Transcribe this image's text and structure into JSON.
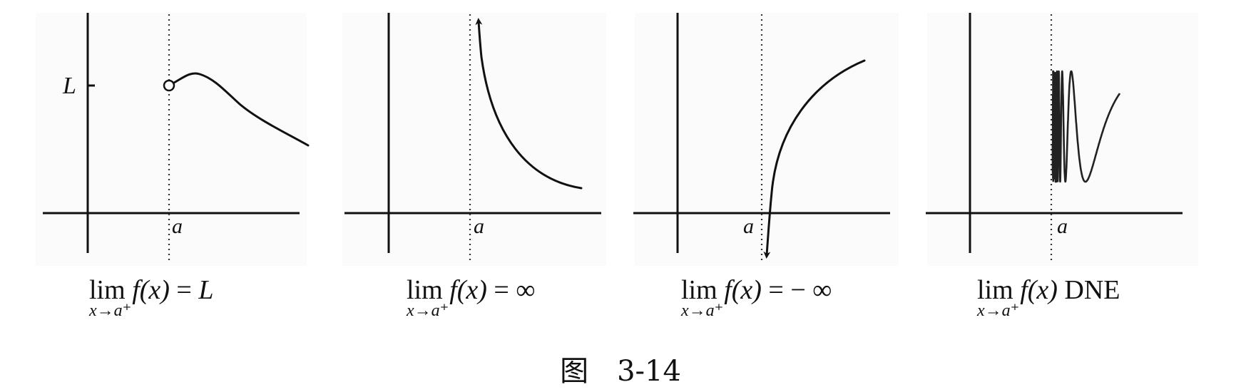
{
  "panels": [
    {
      "point_label": "a",
      "value_label": "L",
      "caption": {
        "lim": "lim",
        "sub": "x→a⁺",
        "expr": "f(x)",
        "eq": " = ",
        "rhs": "L"
      }
    },
    {
      "point_label": "a",
      "caption": {
        "lim": "lim",
        "sub": "x→a⁺",
        "expr": "f(x)",
        "eq": " = ",
        "rhs": "∞"
      }
    },
    {
      "point_label": "a",
      "caption": {
        "lim": "lim",
        "sub": "x→a⁺",
        "expr": "f(x)",
        "eq": " = ",
        "rhs": "− ∞"
      }
    },
    {
      "point_label": "a",
      "caption": {
        "lim": "lim",
        "sub": "x→a⁺",
        "expr": "f(x)",
        "eq": " ",
        "rhs": "DNE"
      }
    }
  ],
  "figure_label": {
    "prefix": "图",
    "number": "3-14"
  }
}
